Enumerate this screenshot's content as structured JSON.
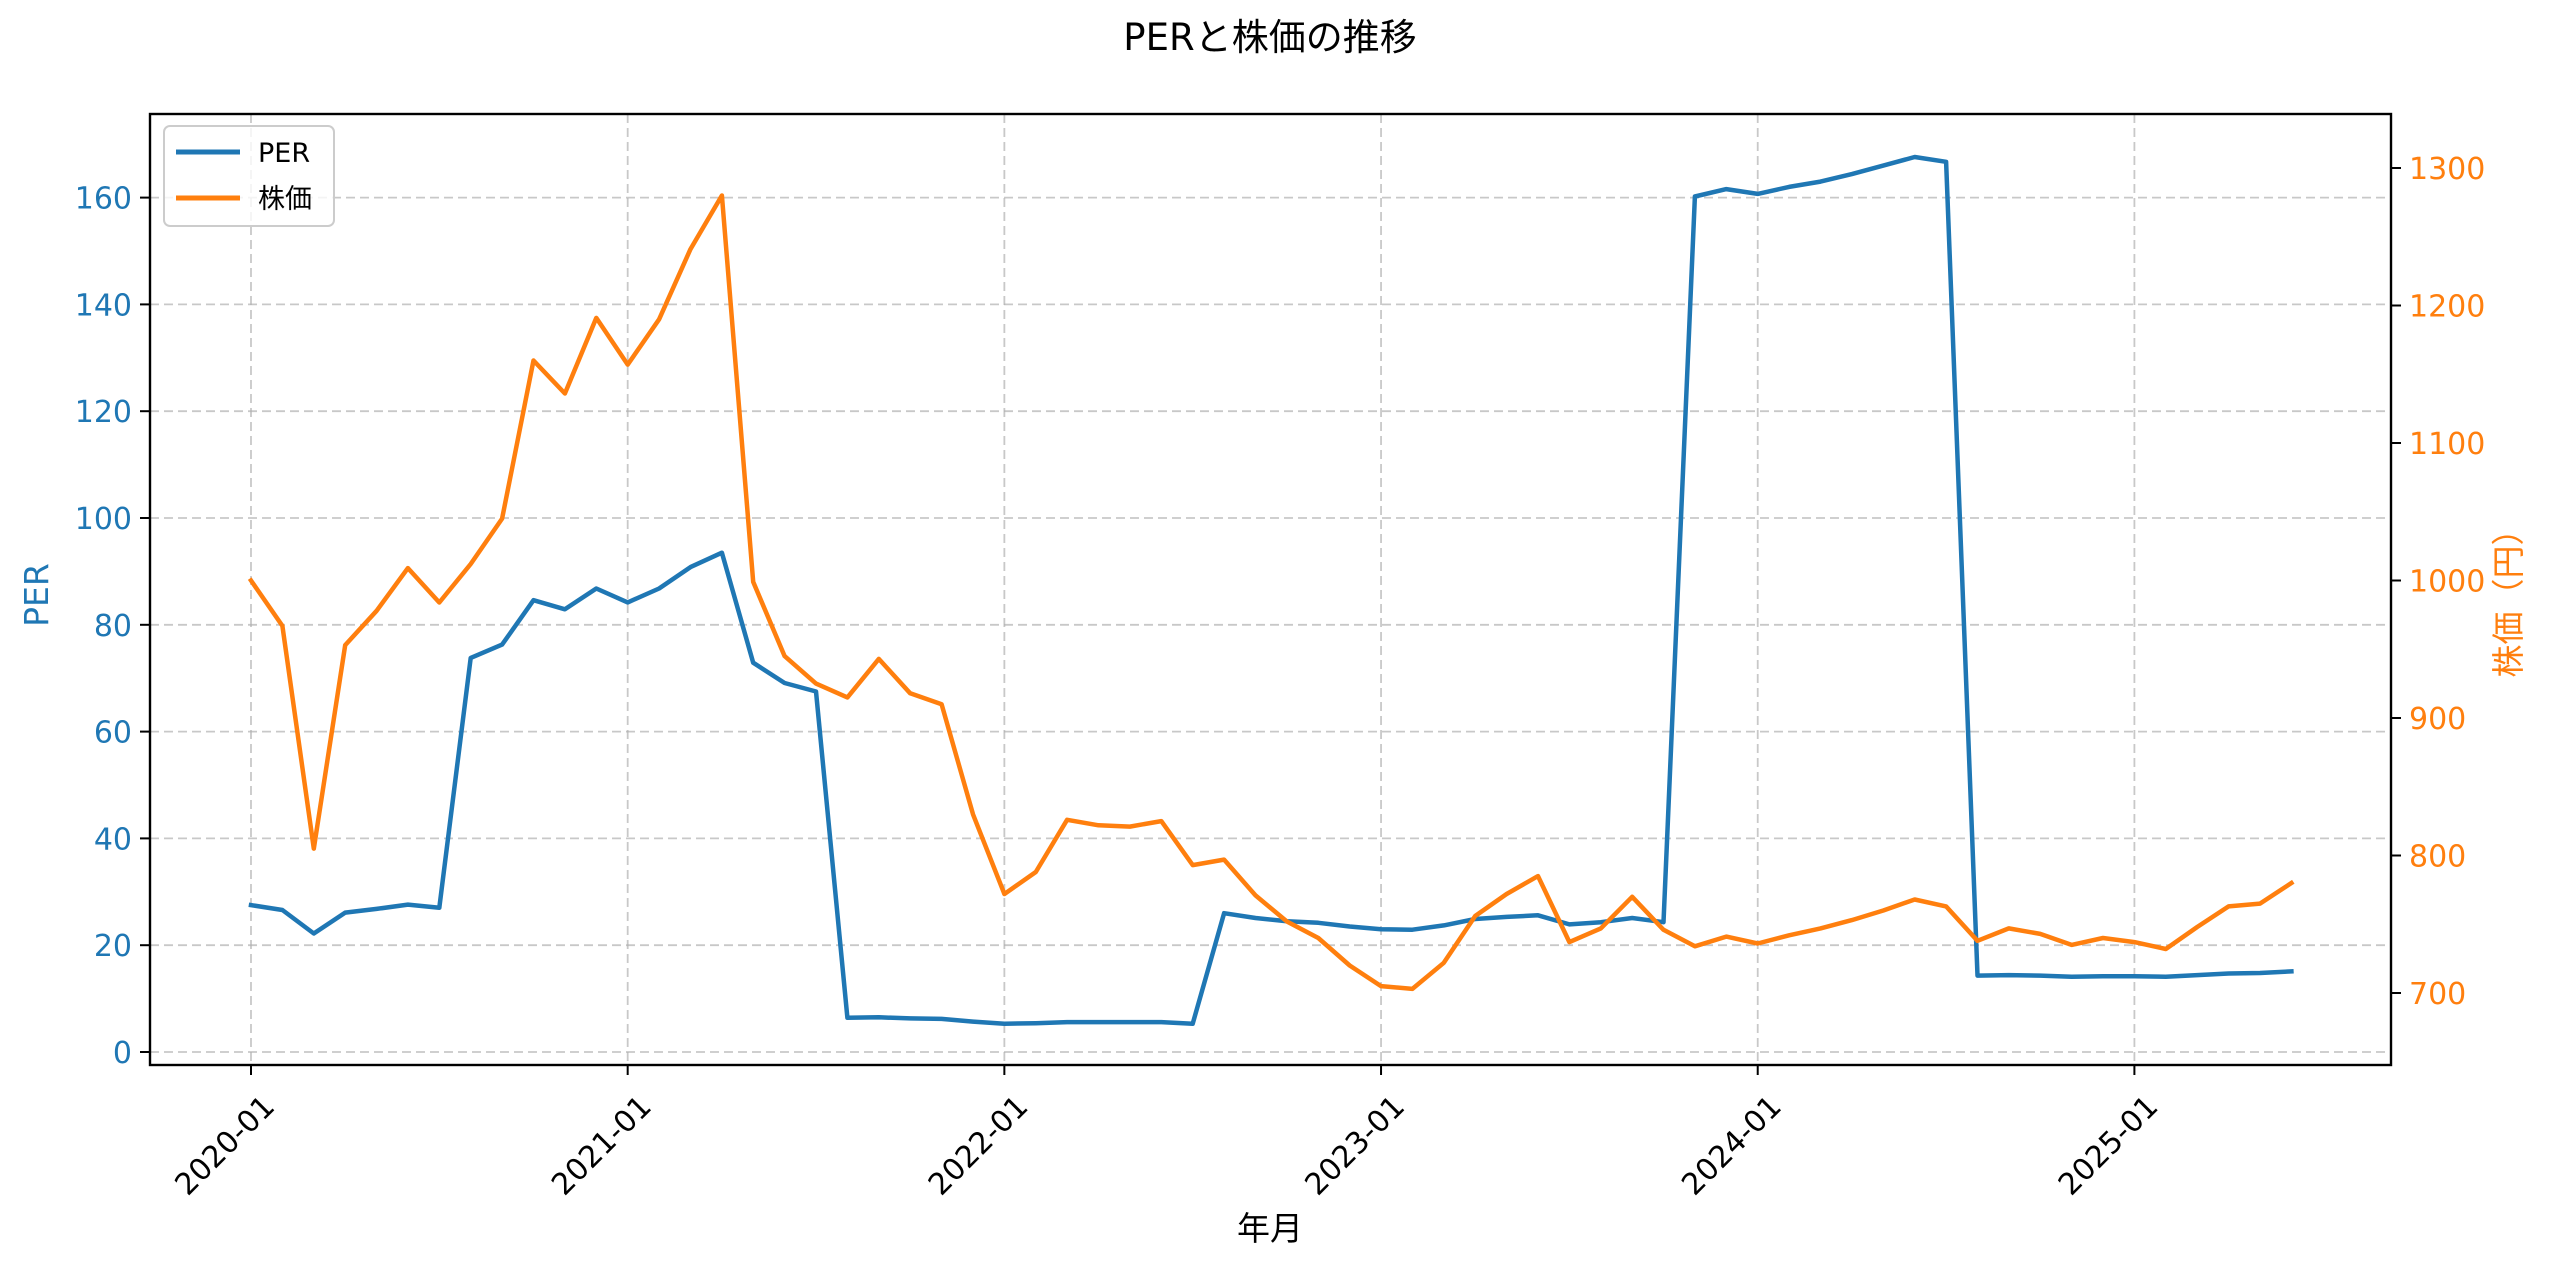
{
  "chart_data": {
    "type": "line",
    "title": "PERと株価の推移",
    "xlabel": "年月",
    "ylabel": "PER",
    "ylabel_right": "株価（円）",
    "x_tick_labels": [
      "2020-01",
      "2021-01",
      "2022-01",
      "2023-01",
      "2024-01",
      "2025-01"
    ],
    "y_ticks_left": [
      0,
      20,
      40,
      60,
      80,
      100,
      120,
      140,
      160
    ],
    "y_ticks_right": [
      700,
      800,
      900,
      1000,
      1100,
      1200,
      1300
    ],
    "ylim_left": [
      -3,
      176
    ],
    "ylim_right": [
      645,
      1345
    ],
    "grid": true,
    "legend_position": "upper left",
    "x": [
      "2020-01",
      "2020-02",
      "2020-03",
      "2020-04",
      "2020-05",
      "2020-06",
      "2020-07",
      "2020-08",
      "2020-09",
      "2020-10",
      "2020-11",
      "2020-12",
      "2021-01",
      "2021-02",
      "2021-03",
      "2021-04",
      "2021-05",
      "2021-06",
      "2021-07",
      "2021-08",
      "2021-09",
      "2021-10",
      "2021-11",
      "2021-12",
      "2022-01",
      "2022-02",
      "2022-03",
      "2022-04",
      "2022-05",
      "2022-06",
      "2022-07",
      "2022-08",
      "2022-09",
      "2022-10",
      "2022-11",
      "2022-12",
      "2023-01",
      "2023-02",
      "2023-03",
      "2023-04",
      "2023-05",
      "2023-06",
      "2023-07",
      "2023-08",
      "2023-09",
      "2023-10",
      "2023-11",
      "2023-12",
      "2024-01",
      "2024-02",
      "2024-03",
      "2024-04",
      "2024-05",
      "2024-06",
      "2024-07",
      "2024-08",
      "2024-09",
      "2024-10",
      "2024-11",
      "2024-12",
      "2025-01",
      "2025-02",
      "2025-03",
      "2025-04",
      "2025-05",
      "2025-06"
    ],
    "series": [
      {
        "name": "PER",
        "axis": "left",
        "color": "#1f77b4",
        "values": [
          27.5,
          26.6,
          22.2,
          26.1,
          26.8,
          27.6,
          27.0,
          73.8,
          76.3,
          84.6,
          82.9,
          86.8,
          84.2,
          86.8,
          90.8,
          93.5,
          72.9,
          69.1,
          67.5,
          6.4,
          6.5,
          6.3,
          6.2,
          5.7,
          5.3,
          5.4,
          5.6,
          5.6,
          5.6,
          5.6,
          5.3,
          26.0,
          25.1,
          24.5,
          24.2,
          23.5,
          23.0,
          22.9,
          23.7,
          24.9,
          25.3,
          25.6,
          23.9,
          24.3,
          25.1,
          24.3,
          160.2,
          161.6,
          160.7,
          162.0,
          163.0,
          164.4,
          166.0,
          167.6,
          166.7,
          14.3,
          14.4,
          14.3,
          14.1,
          14.2,
          14.2,
          14.1,
          14.4,
          14.7,
          14.8,
          15.1
        ]
      },
      {
        "name": "株価",
        "axis": "right",
        "color": "#ff7f0e",
        "values": [
          1000,
          967,
          805,
          953,
          978,
          1009,
          984,
          1012,
          1045,
          1160,
          1136,
          1191,
          1157,
          1190,
          1241,
          1280,
          999,
          945,
          925,
          915,
          943,
          918,
          910,
          830,
          772,
          788,
          826,
          822,
          821,
          825,
          793,
          797,
          771,
          752,
          740,
          720,
          705,
          703,
          722,
          756,
          772,
          785,
          737,
          747,
          770,
          746,
          734,
          741,
          736,
          742,
          747,
          753,
          760,
          768,
          763,
          738,
          747,
          743,
          735,
          740,
          737,
          732,
          748,
          763,
          765,
          780
        ]
      }
    ]
  },
  "colors": {
    "per": "#1f77b4",
    "price": "#ff7f0e",
    "grid": "#b0b0b0",
    "axis": "#000000"
  },
  "legend": {
    "items": [
      {
        "label": "PER",
        "color": "#1f77b4"
      },
      {
        "label": "株価",
        "color": "#ff7f0e"
      }
    ]
  }
}
